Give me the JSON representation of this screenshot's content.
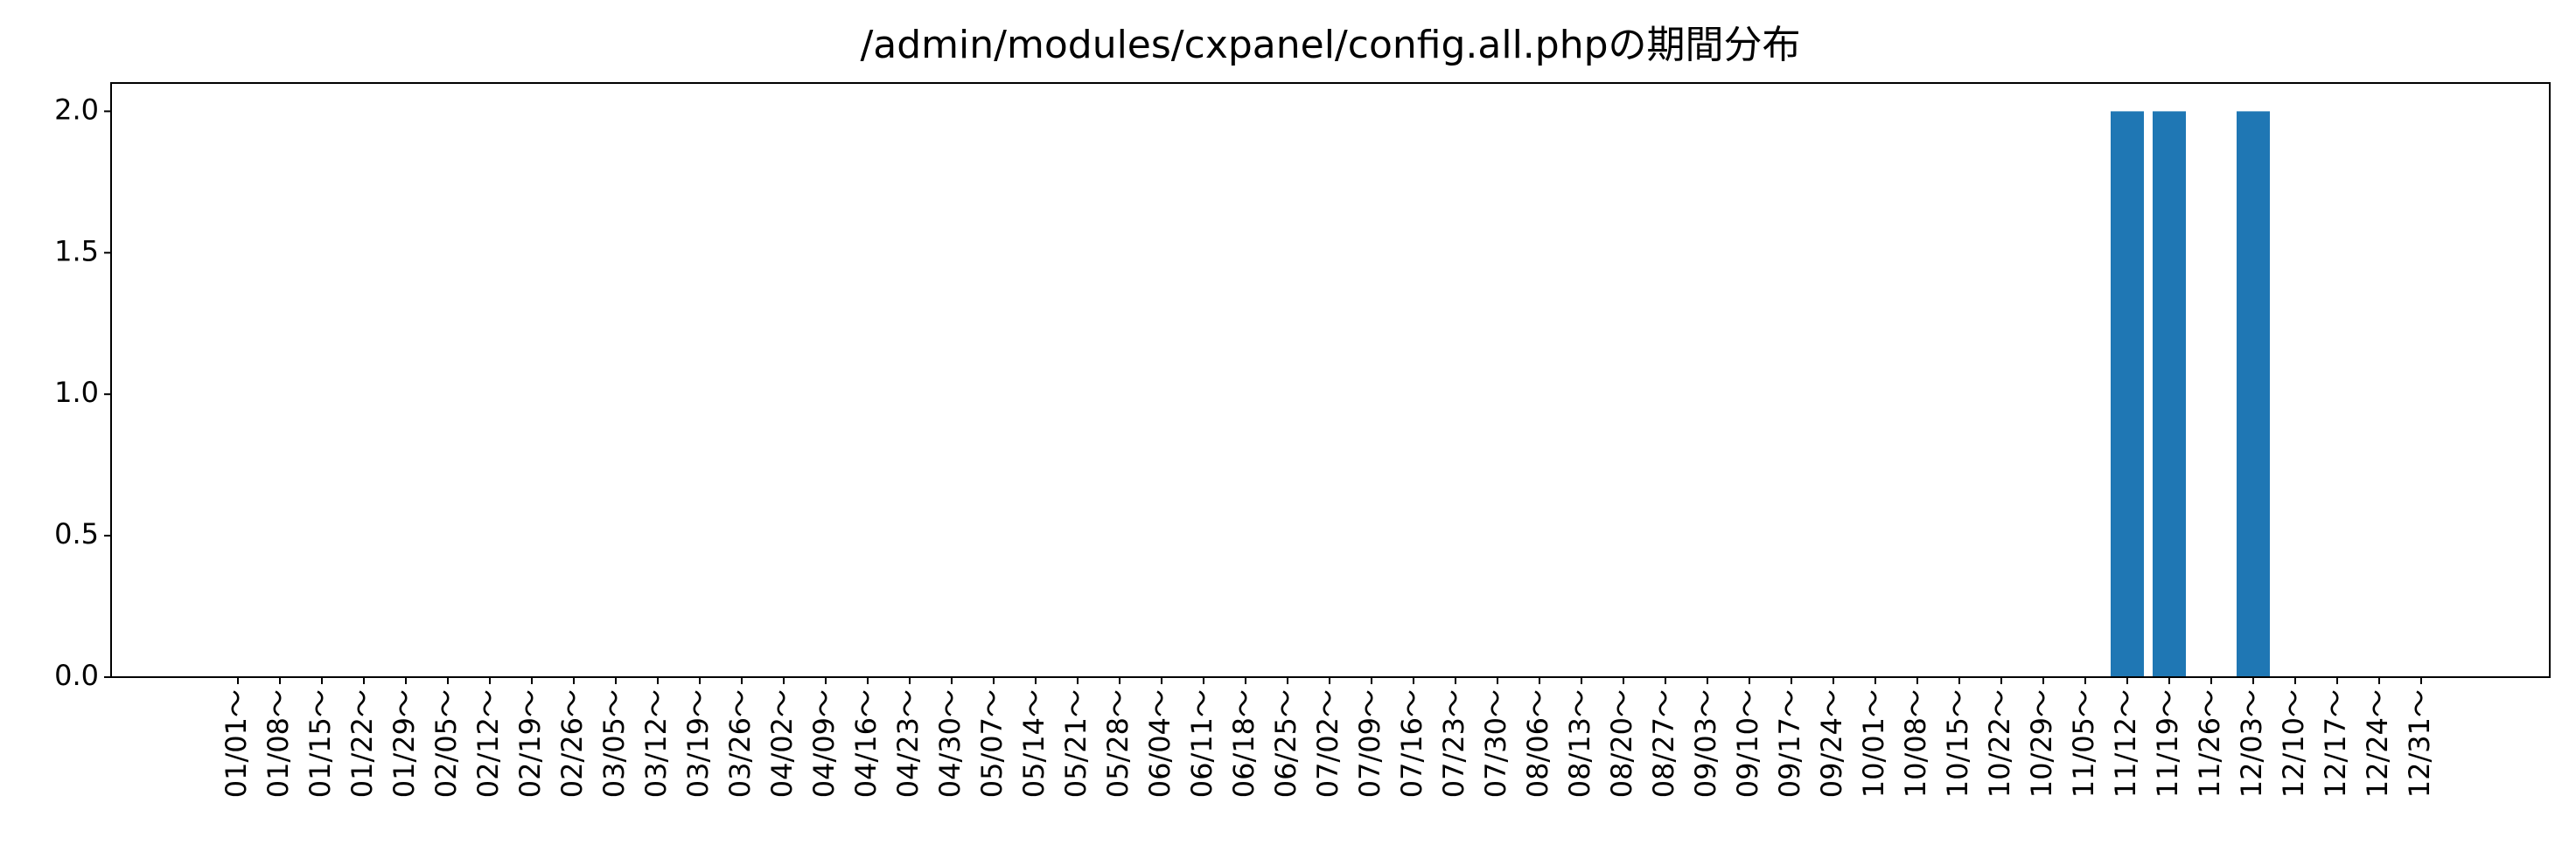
{
  "chart_data": {
    "type": "bar",
    "title": "/admin/modules/cxpanel/config.all.phpの期間分布",
    "xlabel": "",
    "ylabel": "",
    "ylim": [
      0,
      2.1
    ],
    "yticks": [
      "0.0",
      "0.5",
      "1.0",
      "1.5",
      "2.0"
    ],
    "ytick_values": [
      0,
      0.5,
      1.0,
      1.5,
      2.0
    ],
    "grid": false,
    "bar_color": "#1f77b4",
    "categories": [
      "01/01～",
      "01/08～",
      "01/15～",
      "01/22～",
      "01/29～",
      "02/05～",
      "02/12～",
      "02/19～",
      "02/26～",
      "03/05～",
      "03/12～",
      "03/19～",
      "03/26～",
      "04/02～",
      "04/09～",
      "04/16～",
      "04/23～",
      "04/30～",
      "05/07～",
      "05/14～",
      "05/21～",
      "05/28～",
      "06/04～",
      "06/11～",
      "06/18～",
      "06/25～",
      "07/02～",
      "07/09～",
      "07/16～",
      "07/23～",
      "07/30～",
      "08/06～",
      "08/13～",
      "08/20～",
      "08/27～",
      "09/03～",
      "09/10～",
      "09/17～",
      "09/24～",
      "10/01～",
      "10/08～",
      "10/15～",
      "10/22～",
      "10/29～",
      "11/05～",
      "11/12～",
      "11/19～",
      "11/26～",
      "12/03～",
      "12/10～",
      "12/17～",
      "12/24～",
      "12/31～"
    ],
    "values": [
      0,
      0,
      0,
      0,
      0,
      0,
      0,
      0,
      0,
      0,
      0,
      0,
      0,
      0,
      0,
      0,
      0,
      0,
      0,
      0,
      0,
      0,
      0,
      0,
      0,
      0,
      0,
      0,
      0,
      0,
      0,
      0,
      0,
      0,
      0,
      0,
      0,
      0,
      0,
      0,
      0,
      0,
      0,
      0,
      0,
      2,
      2,
      0,
      2,
      0,
      0,
      0,
      0
    ]
  }
}
